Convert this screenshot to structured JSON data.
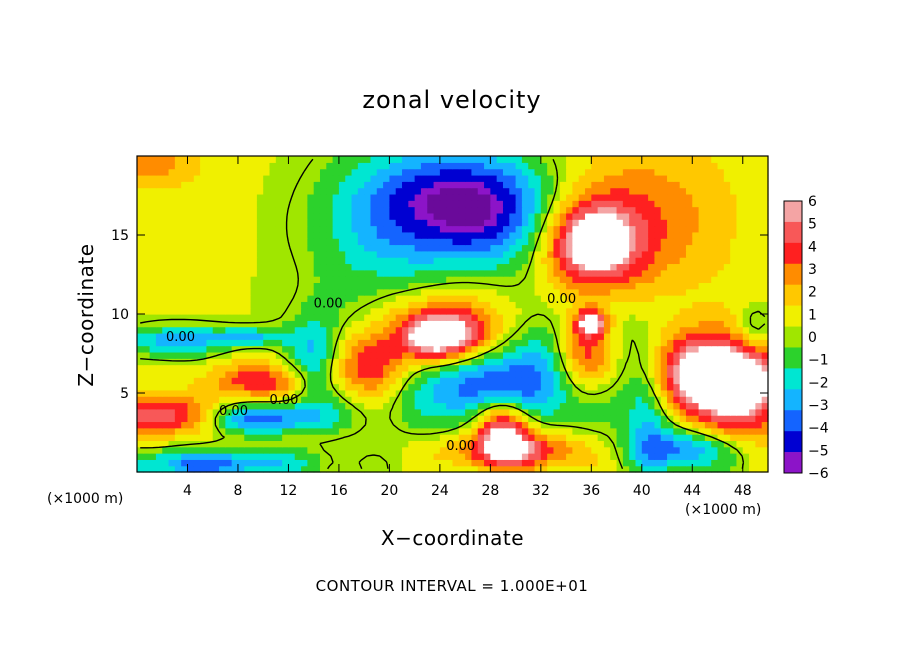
{
  "chart_data": {
    "type": "heatmap",
    "title": "zonal velocity",
    "xlabel": "X−coordinate",
    "ylabel": "Z−coordinate",
    "x_unit": "(×1000 m)",
    "y_unit": "(×1000 m)",
    "footer": "CONTOUR INTERVAL = 1.000E+01",
    "xlim": [
      0,
      50
    ],
    "ylim": [
      0,
      20
    ],
    "x_ticks": [
      4,
      8,
      12,
      16,
      20,
      24,
      28,
      32,
      36,
      40,
      44,
      48
    ],
    "y_ticks": [
      5,
      10,
      15
    ],
    "colorbar": {
      "range": [
        -6,
        6
      ],
      "levels": [
        6,
        5,
        4,
        3,
        2,
        1,
        0,
        -1,
        -2,
        -3,
        -4,
        -5,
        -6
      ],
      "level_labels": [
        "6",
        "5",
        "4",
        "3",
        "2",
        "1",
        "0",
        "−1",
        "−2",
        "−3",
        "−4",
        "−5",
        "−6"
      ],
      "colors": [
        "#f4a4a4",
        "#f85858",
        "#ff2020",
        "#ff8c00",
        "#ffc800",
        "#f0f000",
        "#a0e600",
        "#2cd22c",
        "#00e6d2",
        "#14b4ff",
        "#1464ff",
        "#0000d2",
        "#8c14c8"
      ]
    },
    "contour_labels": [
      "0.00",
      "0.00",
      "0.00",
      "0.00",
      "0.00",
      "0.00"
    ],
    "blobs": [
      {
        "x": 25,
        "z": 17.2,
        "rx": 7,
        "rz": 3.6,
        "v": -5.5
      },
      {
        "x": 19,
        "z": 15,
        "rx": 6,
        "rz": 5,
        "v": -2.2
      },
      {
        "x": 29,
        "z": 16,
        "rx": 5,
        "rz": 3.5,
        "v": -2.5
      },
      {
        "x": 36,
        "z": 14.5,
        "rx": 3.6,
        "rz": 2.6,
        "v": 6.8
      },
      {
        "x": 40,
        "z": 16,
        "rx": 7,
        "rz": 5,
        "v": 2.6
      },
      {
        "x": 1,
        "z": 19.5,
        "rx": 4,
        "rz": 1.5,
        "v": 2.4
      },
      {
        "x": 2,
        "z": 3.6,
        "rx": 4,
        "rz": 1.2,
        "v": 5
      },
      {
        "x": 3,
        "z": 8.3,
        "rx": 4,
        "rz": 1.0,
        "v": -4
      },
      {
        "x": 9,
        "z": 8.6,
        "rx": 3,
        "rz": 0.6,
        "v": -3
      },
      {
        "x": 10,
        "z": 5.8,
        "rx": 4,
        "rz": 1.2,
        "v": 4
      },
      {
        "x": 10,
        "z": 3.4,
        "rx": 5,
        "rz": 1.0,
        "v": -4.5
      },
      {
        "x": 6,
        "z": 0.5,
        "rx": 8,
        "rz": 1.0,
        "v": -4.5
      },
      {
        "x": 18.5,
        "z": 6.8,
        "rx": 3.2,
        "rz": 2.2,
        "v": 7
      },
      {
        "x": 19,
        "z": 7,
        "rx": 6,
        "rz": 3.4,
        "v": -3.5
      },
      {
        "x": 24,
        "z": 8.5,
        "rx": 3.2,
        "rz": 1.5,
        "v": 7
      },
      {
        "x": 24,
        "z": 9.5,
        "rx": 6,
        "rz": 2.2,
        "v": 3.5
      },
      {
        "x": 29,
        "z": 3,
        "rx": 2.2,
        "rz": 1.8,
        "v": 7
      },
      {
        "x": 28,
        "z": 5,
        "rx": 5,
        "rz": 2.5,
        "v": -4.5
      },
      {
        "x": 30,
        "z": 1.4,
        "rx": 5,
        "rz": 1.2,
        "v": 5
      },
      {
        "x": 35.5,
        "z": 7.4,
        "rx": 2.6,
        "rz": 2.6,
        "v": 7
      },
      {
        "x": 35,
        "z": 7,
        "rx": 6,
        "rz": 3.6,
        "v": -4.5
      },
      {
        "x": 36,
        "z": 9.5,
        "rx": 1.2,
        "rz": 0.8,
        "v": 6
      },
      {
        "x": 45,
        "z": 6.2,
        "rx": 5,
        "rz": 2.6,
        "v": 7
      },
      {
        "x": 48,
        "z": 5,
        "rx": 4,
        "rz": 3,
        "v": 4
      },
      {
        "x": 43.5,
        "z": 1.4,
        "rx": 4,
        "rz": 1.4,
        "v": -4.5
      },
      {
        "x": 40.5,
        "z": 3.8,
        "rx": 1.8,
        "rz": 3,
        "v": -3.5
      },
      {
        "x": 49,
        "z": 9,
        "rx": 1.5,
        "rz": 1.5,
        "v": -2.5
      },
      {
        "x": 14,
        "z": 7,
        "rx": 2,
        "rz": 3,
        "v": -2.5
      }
    ],
    "base_value": 0.7,
    "legend": "right"
  }
}
